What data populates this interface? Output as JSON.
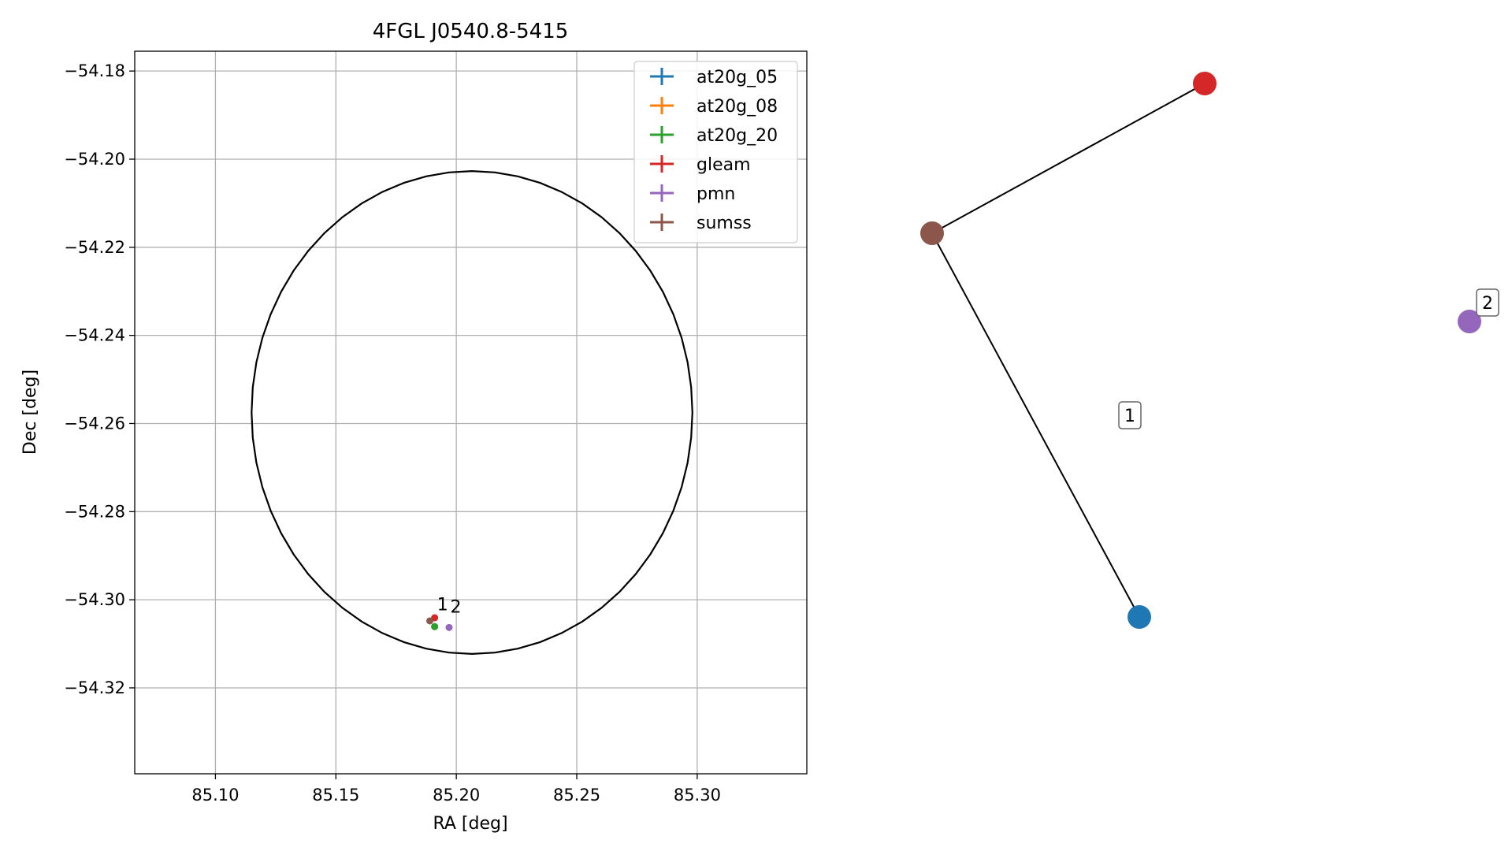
{
  "chart_data": [
    {
      "type": "scatter",
      "title": "4FGL J0540.8-5415",
      "xlabel": "RA [deg]",
      "ylabel": "Dec [deg]",
      "xlim": [
        85.0665,
        85.3455
      ],
      "ylim": [
        -54.3395,
        -54.1755
      ],
      "xticks": [
        85.1,
        85.15,
        85.2,
        85.25,
        85.3
      ],
      "xtick_labels": [
        "85.10",
        "85.15",
        "85.20",
        "85.25",
        "85.30"
      ],
      "yticks": [
        -54.18,
        -54.2,
        -54.22,
        -54.24,
        -54.26,
        -54.28,
        -54.3,
        -54.32
      ],
      "ytick_labels": [
        "−54.18",
        "−54.20",
        "−54.22",
        "−54.24",
        "−54.26",
        "−54.28",
        "−54.30",
        "−54.32"
      ],
      "grid": true,
      "legend_position": "upper right",
      "ellipse": {
        "center_ra": 85.2065,
        "center_dec": -54.2575,
        "semi_axis_ra": 0.0915,
        "semi_axis_dec": 0.0548,
        "color": "#000000"
      },
      "series": [
        {
          "name": "at20g_05",
          "color": "#1f77b4",
          "points": [
            {
              "ra": 85.191,
              "dec": -54.3061
            }
          ]
        },
        {
          "name": "at20g_08",
          "color": "#ff7f0e",
          "points": [
            {
              "ra": 85.191,
              "dec": -54.3061
            }
          ]
        },
        {
          "name": "at20g_20",
          "color": "#2ca02c",
          "points": [
            {
              "ra": 85.191,
              "dec": -54.3061
            }
          ]
        },
        {
          "name": "gleam",
          "color": "#d62728",
          "points": [
            {
              "ra": 85.191,
              "dec": -54.3041
            }
          ]
        },
        {
          "name": "pmn",
          "color": "#9467bd",
          "points": [
            {
              "ra": 85.197,
              "dec": -54.3063
            }
          ]
        },
        {
          "name": "sumss",
          "color": "#8c564b",
          "points": [
            {
              "ra": 85.189,
              "dec": -54.3048
            }
          ]
        }
      ],
      "annotations": [
        {
          "text": "1",
          "ra": 85.192,
          "dec": -54.3024
        },
        {
          "text": "2",
          "ra": 85.1975,
          "dec": -54.3029
        }
      ]
    },
    {
      "type": "graph",
      "nodes": [
        {
          "id": "at20g",
          "color": "#1f77b4"
        },
        {
          "id": "gleam",
          "color": "#d62728"
        },
        {
          "id": "sumss",
          "color": "#8c564b"
        },
        {
          "id": "pmn",
          "color": "#9467bd"
        }
      ],
      "edges": [
        [
          "sumss",
          "gleam"
        ],
        [
          "sumss",
          "at20g"
        ]
      ],
      "labels": [
        {
          "text": "1",
          "component": [
            "at20g",
            "gleam",
            "sumss"
          ]
        },
        {
          "text": "2",
          "component": [
            "pmn"
          ]
        }
      ]
    }
  ]
}
